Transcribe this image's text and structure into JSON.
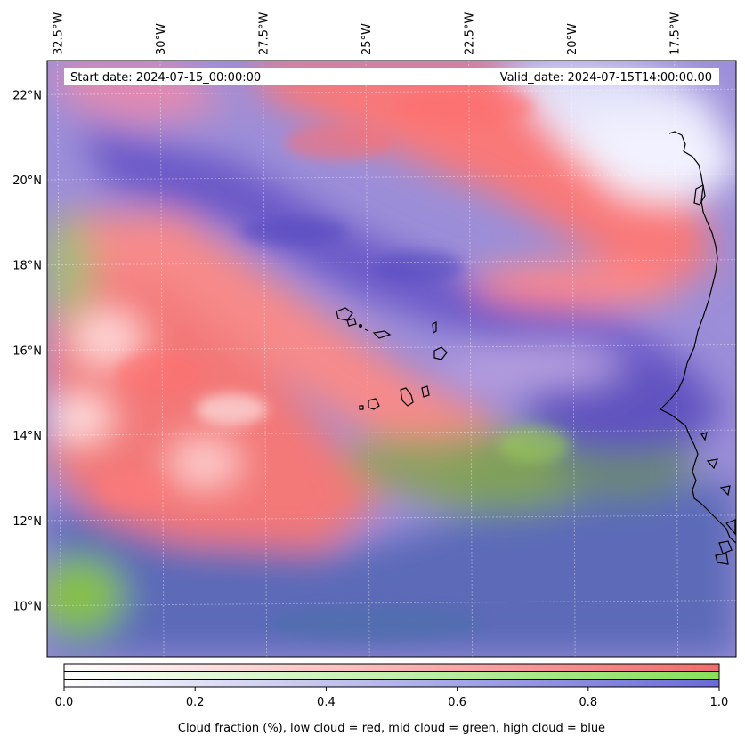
{
  "header": {
    "start_date": "Start date: 2024-07-15_00:00:00",
    "valid_date": "Valid_date: 2024-07-15T14:00:00.00"
  },
  "map": {
    "lon_range": [
      -32.75,
      -16.0
    ],
    "lat_range": [
      8.8,
      22.8
    ],
    "lon_ticks": [
      {
        "value": -32.5,
        "label": "32.5°W"
      },
      {
        "value": -30.0,
        "label": "30°W"
      },
      {
        "value": -27.5,
        "label": "27.5°W"
      },
      {
        "value": -25.0,
        "label": "25°W"
      },
      {
        "value": -22.5,
        "label": "22.5°W"
      },
      {
        "value": -20.0,
        "label": "20°W"
      },
      {
        "value": -17.5,
        "label": "17.5°W"
      }
    ],
    "lat_ticks": [
      {
        "value": 22,
        "label": "22°N"
      },
      {
        "value": 20,
        "label": "20°N"
      },
      {
        "value": 18,
        "label": "18°N"
      },
      {
        "value": 16,
        "label": "16°N"
      },
      {
        "value": 14,
        "label": "14°N"
      },
      {
        "value": 12,
        "label": "12°N"
      },
      {
        "value": 10,
        "label": "10°N"
      }
    ],
    "gridlines": true
  },
  "colorbar": {
    "ticks": [
      "0.0",
      "0.2",
      "0.4",
      "0.6",
      "0.8",
      "1.0"
    ],
    "range": [
      0,
      1
    ],
    "label": "Cloud fraction (%), low cloud = red, mid cloud = green, high cloud = blue",
    "bands": [
      {
        "name": "low",
        "color": "#f47070"
      },
      {
        "name": "mid",
        "color": "#8ee06a"
      },
      {
        "name": "high",
        "color": "#7070dd"
      }
    ]
  },
  "colors": {
    "low_cloud": "#ff6b6b",
    "mid_cloud": "#88d84a",
    "high_cloud": "#6a5ad0",
    "clear": "#ffffff",
    "coastline": "#000000"
  }
}
